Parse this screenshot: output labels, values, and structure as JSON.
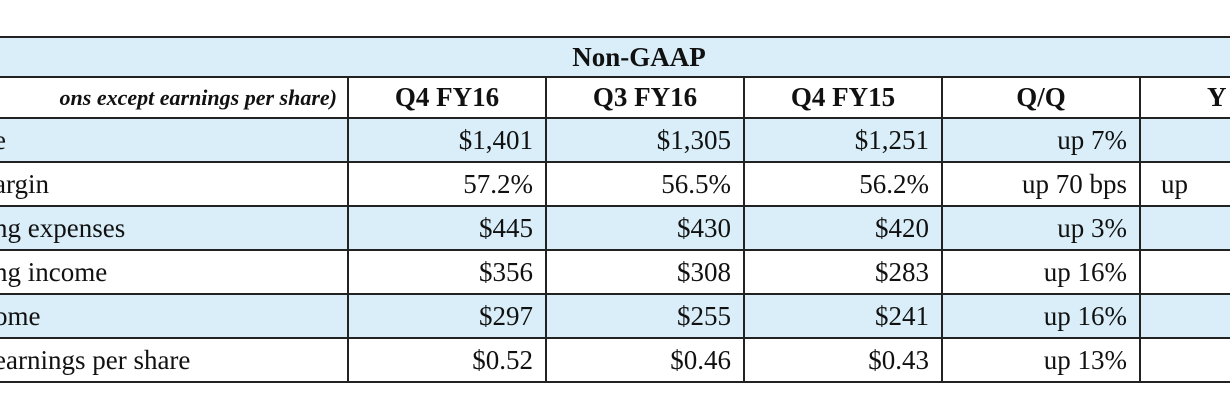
{
  "table": {
    "title": "Non-GAAP",
    "columns": [
      "ons except earnings per share)",
      "Q4 FY16",
      "Q3 FY16",
      "Q4 FY15",
      "Q/Q",
      "Y"
    ],
    "rows": [
      {
        "label": "e",
        "values": [
          "$1,401",
          "$1,305",
          "$1,251",
          "up 7%",
          ""
        ]
      },
      {
        "label": "argin",
        "values": [
          "57.2%",
          "56.5%",
          "56.2%",
          "up 70 bps",
          "up"
        ]
      },
      {
        "label": "ng expenses",
        "values": [
          "$445",
          "$430",
          "$420",
          "up 3%",
          ""
        ]
      },
      {
        "label": "ng income",
        "values": [
          "$356",
          "$308",
          "$283",
          "up 16%",
          ""
        ]
      },
      {
        "label": "ome",
        "values": [
          "$297",
          "$255",
          "$241",
          "up 16%",
          ""
        ]
      },
      {
        "label": "earnings per share",
        "values": [
          "$0.52",
          "$0.46",
          "$0.43",
          "up 13%",
          ""
        ]
      }
    ]
  }
}
